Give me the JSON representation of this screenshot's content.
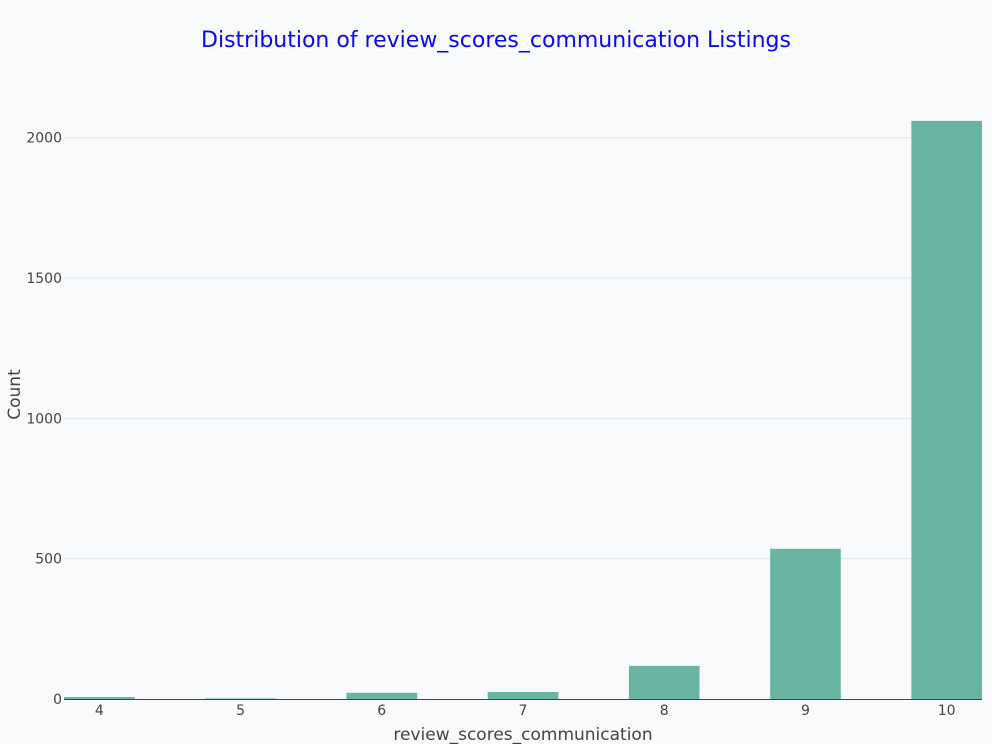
{
  "chart_data": {
    "type": "bar",
    "title": "Distribution of review_scores_communication Listings",
    "xlabel": "review_scores_communication",
    "ylabel": "Count",
    "categories": [
      "4",
      "5",
      "6",
      "7",
      "8",
      "9",
      "10"
    ],
    "values": [
      7,
      2,
      22,
      25,
      118,
      535,
      2060
    ],
    "ylim": [
      0,
      2170
    ],
    "yticks": [
      0,
      500,
      1000,
      1500,
      2000
    ],
    "grid": true,
    "colors": {
      "bar": "#69b3a2",
      "title": "#0a0ae6",
      "grid": "#e2e6ea",
      "axis_line": "#444444",
      "background": "#f7f9fb"
    }
  }
}
